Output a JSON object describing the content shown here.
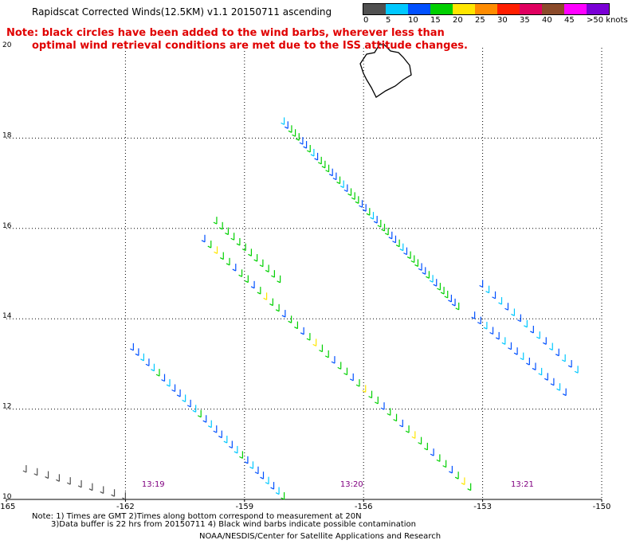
{
  "title": "Rapidscat Corrected Winds(12.5KM) v1.1 20150711 ascending",
  "note_line1": "Note: black circles have been added to the wind barbs, wherever less than",
  "note_line2": "optimal wind retrieval conditions are met due to the ISS attitude changes.",
  "legend": {
    "colors": [
      "#505050",
      "#00c8ff",
      "#0050ff",
      "#00d000",
      "#ffe600",
      "#ff8c00",
      "#ff1e00",
      "#e00060",
      "#8b4a2a",
      "#ff00ff",
      "#7a00d6"
    ],
    "labels": [
      "0",
      "5",
      "10",
      "15",
      "20",
      "25",
      "30",
      "35",
      "40",
      "45",
      ">50 knots"
    ]
  },
  "axes": {
    "lon_ticks": [
      "-165",
      "-162",
      "-159",
      "-156",
      "-153",
      "-150"
    ],
    "lat_ticks": [
      "20",
      "18",
      "16",
      "14",
      "12",
      "10"
    ],
    "lon_range": [
      -165,
      -150
    ],
    "lat_range": [
      10,
      20
    ]
  },
  "time_labels": [
    {
      "text": "13:19",
      "lon": -161.3
    },
    {
      "text": "13:20",
      "lon": -156.3
    },
    {
      "text": "13:21",
      "lon": -152.0
    }
  ],
  "swaths": [
    {
      "name": "swath-west-a",
      "from": [
        -161.8,
        13.3
      ],
      "to": [
        -158.0,
        10.0
      ],
      "count": 30,
      "colors": [
        "#0050ff",
        "#0050ff",
        "#00c8ff",
        "#0050ff",
        "#00c8ff",
        "#00d000",
        "#0050ff",
        "#00c8ff"
      ]
    },
    {
      "name": "swath-west-gray",
      "from": [
        -164.5,
        10.6
      ],
      "to": [
        -162.0,
        10.0
      ],
      "count": 10,
      "colors": [
        "#505050"
      ]
    },
    {
      "name": "swath-mid-a",
      "from": [
        -160.0,
        15.7
      ],
      "to": [
        -153.3,
        10.2
      ],
      "count": 44,
      "colors": [
        "#0050ff",
        "#00d000",
        "#ffe600",
        "#00d000",
        "#00d000",
        "#0050ff",
        "#00d000",
        "#00d000"
      ]
    },
    {
      "name": "swath-mid-b",
      "from": [
        -159.7,
        16.1
      ],
      "to": [
        -158.1,
        14.8
      ],
      "count": 12,
      "colors": [
        "#00d000"
      ]
    },
    {
      "name": "swath-north",
      "from": [
        -158.0,
        18.3
      ],
      "to": [
        -153.6,
        14.2
      ],
      "count": 48,
      "colors": [
        "#00c8ff",
        "#0050ff",
        "#00d000",
        "#00d000",
        "#00d000",
        "#0050ff",
        "#0050ff",
        "#00d000"
      ]
    },
    {
      "name": "swath-east-a",
      "from": [
        -153.0,
        14.7
      ],
      "to": [
        -150.6,
        12.8
      ],
      "count": 16,
      "colors": [
        "#0050ff",
        "#00c8ff"
      ]
    },
    {
      "name": "swath-east-b",
      "from": [
        -153.2,
        14.0
      ],
      "to": [
        -150.9,
        12.3
      ],
      "count": 16,
      "colors": [
        "#0050ff",
        "#0050ff",
        "#00c8ff"
      ]
    }
  ],
  "footnote_line1": "Note: 1) Times are GMT 2)Times along bottom correspond to measurement at 20N",
  "footnote_line2": "3)Data buffer is 22 hrs from 20150711 4) Black wind barbs indicate possible contamination",
  "credit": "NOAA/NESDIS/Center for Satellite Applications and Research"
}
